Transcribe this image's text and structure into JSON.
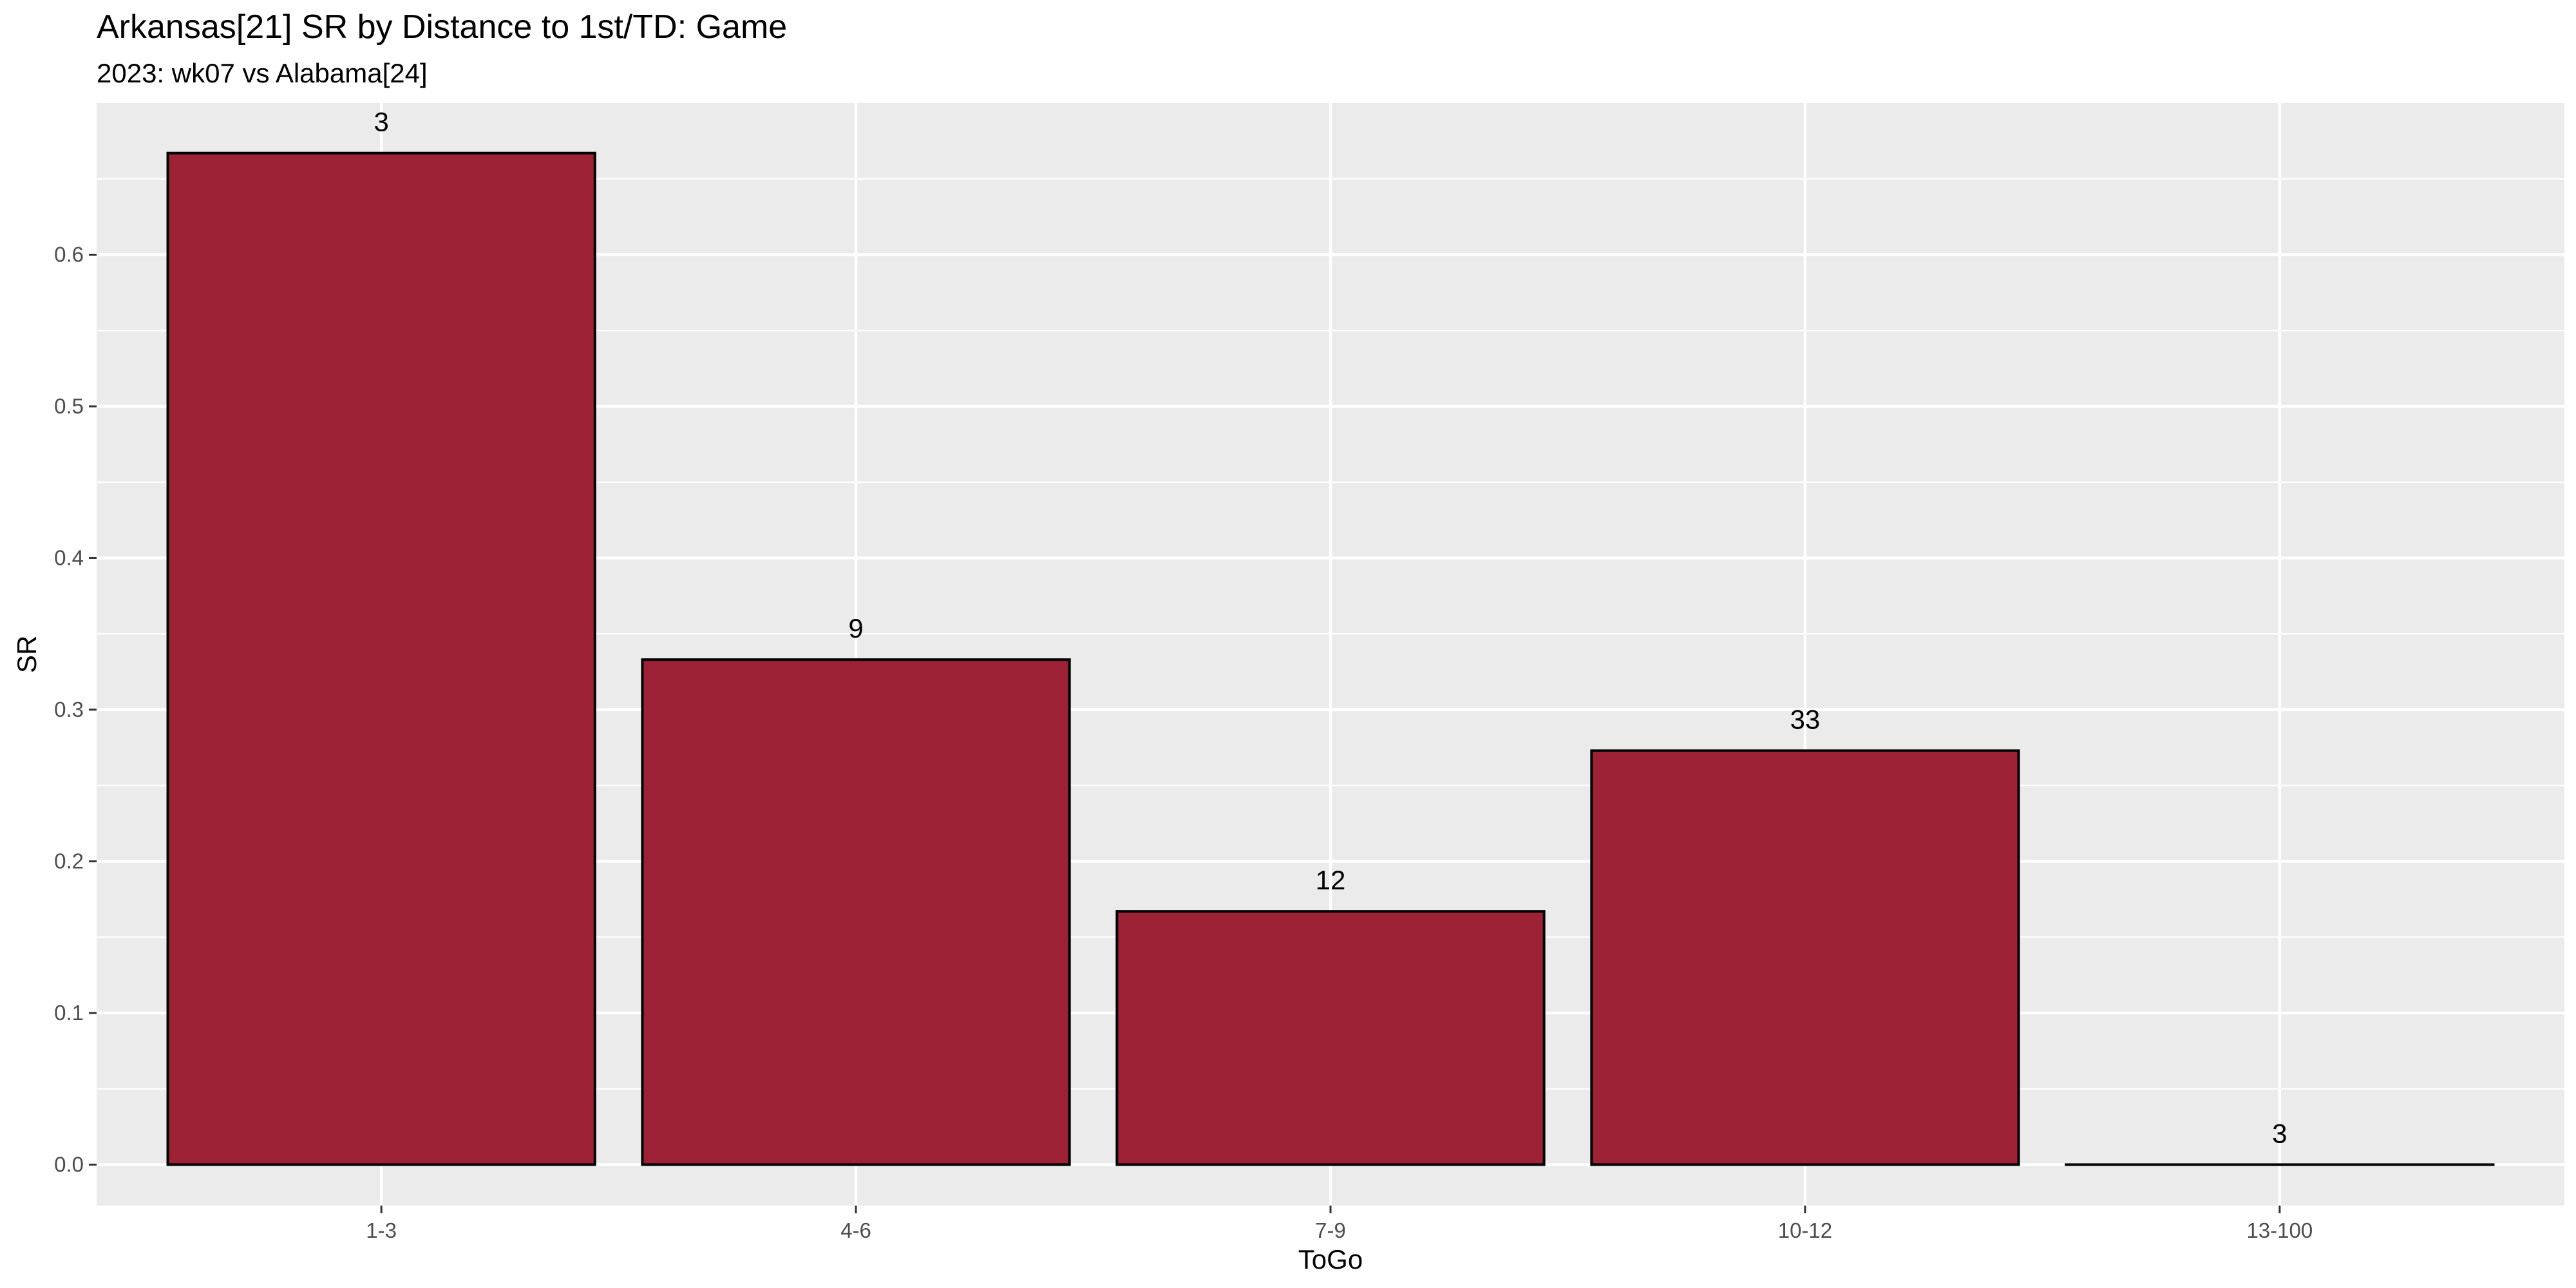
{
  "chart_data": {
    "type": "bar",
    "title": "Arkansas[21] SR by Distance to 1st/TD: Game",
    "subtitle": "2023: wk07 vs Alabama[24]",
    "xlabel": "ToGo",
    "ylabel": "SR",
    "categories": [
      "1-3",
      "4-6",
      "7-9",
      "10-12",
      "13-100"
    ],
    "values": [
      0.667,
      0.333,
      0.167,
      0.273,
      0.0
    ],
    "counts": [
      "3",
      "9",
      "12",
      "33",
      "3"
    ],
    "ylim": [
      -0.027,
      0.7
    ],
    "yticks": [
      0.0,
      0.1,
      0.2,
      0.3,
      0.4,
      0.5,
      0.6
    ],
    "ytick_labels": [
      "0.0",
      "0.1",
      "0.2",
      "0.3",
      "0.4",
      "0.5",
      "0.6"
    ],
    "grid": true,
    "legend": "none",
    "colors": {
      "bar_fill": "#9D2235",
      "bar_outline": "#000000",
      "panel_background": "#EBEBEB",
      "grid_major": "#FFFFFF",
      "grid_minor": "#F5F5F5"
    }
  }
}
